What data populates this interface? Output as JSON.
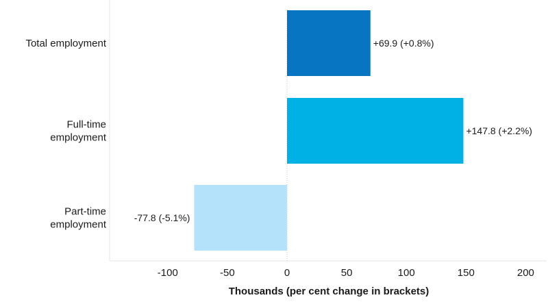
{
  "chart_data": {
    "type": "bar",
    "orientation": "horizontal",
    "categories": [
      [
        "Total employment"
      ],
      [
        "Full-time",
        "employment"
      ],
      [
        "Part-time",
        "employment"
      ]
    ],
    "values": [
      69.9,
      147.8,
      -77.8
    ],
    "data_labels": [
      "+69.9 (+0.8%)",
      "+147.8 (+2.2%)",
      "-77.8 (-5.1%)"
    ],
    "colors": [
      "#0775c2",
      "#00b1e6",
      "#b3e2fa"
    ],
    "xlabel": "Thousands (per cent change in brackets)",
    "xlim": [
      -150,
      210
    ],
    "xticks": [
      -100,
      -50,
      0,
      50,
      100,
      150,
      200
    ],
    "grid": false
  }
}
